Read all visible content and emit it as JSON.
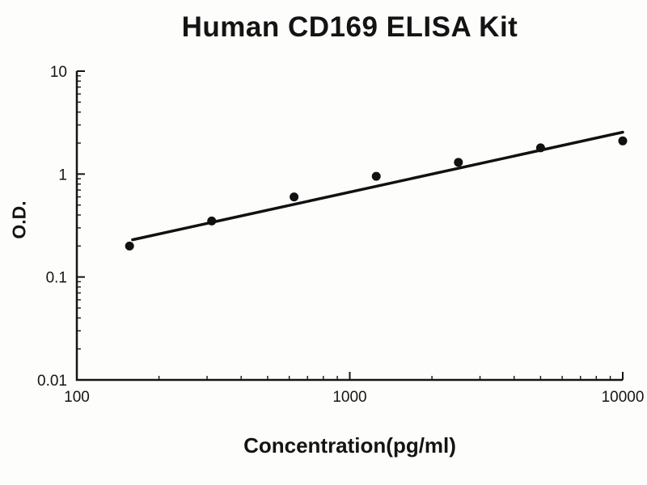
{
  "chart_data": {
    "type": "scatter",
    "title": "Human CD169 ELISA Kit",
    "xlabel": "Concentration(pg/ml)",
    "ylabel": "O.D.",
    "x_scale": "log",
    "y_scale": "log",
    "x_range": [
      100,
      10000
    ],
    "y_range": [
      0.01,
      10
    ],
    "x_ticks": [
      100,
      1000,
      10000
    ],
    "x_tick_labels": [
      "100",
      "1000",
      "10000"
    ],
    "y_ticks": [
      0.01,
      0.1,
      1,
      10
    ],
    "y_tick_labels": [
      "0.01",
      "0.1",
      "1",
      "10"
    ],
    "grid": false,
    "legend": "none",
    "points": [
      {
        "x": 156,
        "y": 0.2
      },
      {
        "x": 312,
        "y": 0.35
      },
      {
        "x": 625,
        "y": 0.6
      },
      {
        "x": 1250,
        "y": 0.95
      },
      {
        "x": 2500,
        "y": 1.3
      },
      {
        "x": 5000,
        "y": 1.8
      },
      {
        "x": 10000,
        "y": 2.1
      }
    ],
    "trend_line": {
      "x1": 160,
      "y1": 0.23,
      "x2": 10000,
      "y2": 2.55
    },
    "axis_color": "#151515",
    "point_color": "#111111",
    "line_color": "#111111"
  }
}
